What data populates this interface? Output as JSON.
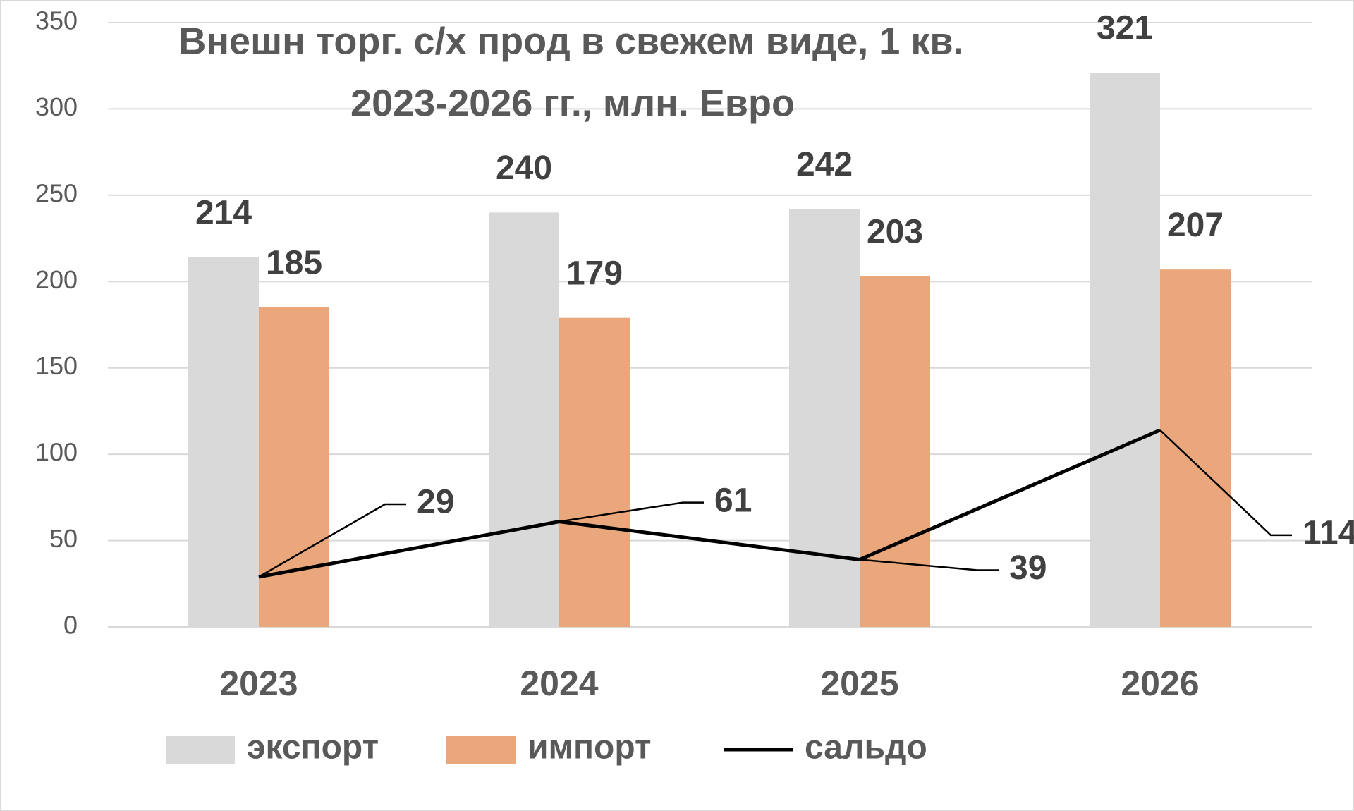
{
  "chart_data": {
    "type": "bar",
    "title": [
      "Внешн торг. с/х прод в свежем виде, 1 кв.",
      "2023-2026 гг., млн. Евро"
    ],
    "categories": [
      "2023",
      "2024",
      "2025",
      "2026"
    ],
    "series": [
      {
        "name": "экспорт",
        "color": "#d9d9d9",
        "type": "bar",
        "values": [
          214,
          240,
          242,
          321
        ]
      },
      {
        "name": "импорт",
        "color": "#eaa77b",
        "type": "bar",
        "values": [
          185,
          179,
          203,
          207
        ]
      },
      {
        "name": "сальдо",
        "color": "#000000",
        "type": "line",
        "values": [
          29,
          61,
          39,
          114
        ]
      }
    ],
    "ylim": [
      0,
      350
    ],
    "yticks": [
      0,
      50,
      100,
      150,
      200,
      250,
      300,
      350
    ],
    "grid": true,
    "legend": "bottom"
  }
}
